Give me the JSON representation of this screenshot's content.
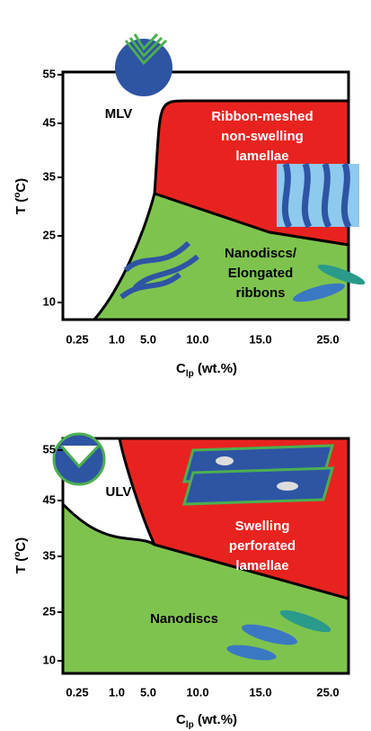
{
  "panels": [
    {
      "y_label": {
        "main": "T (",
        "sup": "o",
        "rest": "C)"
      },
      "x_label": {
        "main": "C",
        "sub": "lp",
        "rest": " (wt.%)"
      },
      "y_ticks": [
        "55",
        "45",
        "35",
        "25",
        "10"
      ],
      "x_ticks": [
        "0.25",
        "1.0",
        "5.0",
        "10.0",
        "15.0",
        "25.0"
      ],
      "regions": [
        {
          "lines": [
            "MLV"
          ]
        },
        {
          "lines": [
            "Ribbon-meshed",
            "non-swelling",
            "lamellae"
          ]
        },
        {
          "lines": [
            "Nanodiscs/",
            "Elongated",
            "ribbons"
          ]
        }
      ]
    },
    {
      "y_label": {
        "main": "T (",
        "sup": "o",
        "rest": "C)"
      },
      "x_label": {
        "main": "C",
        "sub": "lp",
        "rest": " (wt.%)"
      },
      "y_ticks": [
        "55",
        "45",
        "35",
        "25",
        "10"
      ],
      "x_ticks": [
        "0.25",
        "1.0",
        "5.0",
        "10.0",
        "15.0",
        "25.0"
      ],
      "regions": [
        {
          "lines": [
            "ULV"
          ]
        },
        {
          "lines": [
            "Swelling",
            "perforated",
            "lamellae"
          ]
        },
        {
          "lines": [
            "Nanodiscs"
          ]
        }
      ]
    }
  ]
}
